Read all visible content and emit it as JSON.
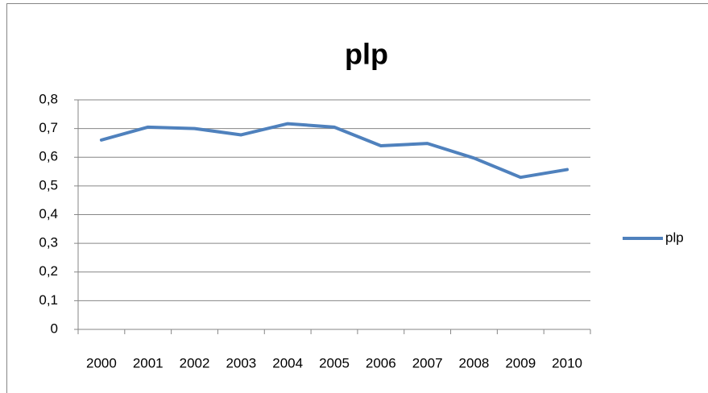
{
  "chart_data": {
    "type": "line",
    "title": "plp",
    "categories": [
      "2000",
      "2001",
      "2002",
      "2003",
      "2004",
      "2005",
      "2006",
      "2007",
      "2008",
      "2009",
      "2010"
    ],
    "series": [
      {
        "name": "plp",
        "color": "#4f81bd",
        "values": [
          0.66,
          0.705,
          0.7,
          0.678,
          0.717,
          0.705,
          0.64,
          0.648,
          0.597,
          0.53,
          0.557
        ]
      }
    ],
    "ylim": [
      0,
      0.8
    ],
    "yticks": [
      0,
      {
        "value": 0.1,
        "label": "0,1"
      },
      {
        "value": 0.2,
        "label": "0,2"
      },
      {
        "value": 0.3,
        "label": "0,3"
      },
      {
        "value": 0.4,
        "label": "0,4"
      },
      {
        "value": 0.5,
        "label": "0,5"
      },
      {
        "value": 0.6,
        "label": "0,6"
      },
      {
        "value": 0.7,
        "label": "0,7"
      },
      {
        "value": 0.8,
        "label": "0,8"
      }
    ],
    "grid": true,
    "legend": "right"
  }
}
